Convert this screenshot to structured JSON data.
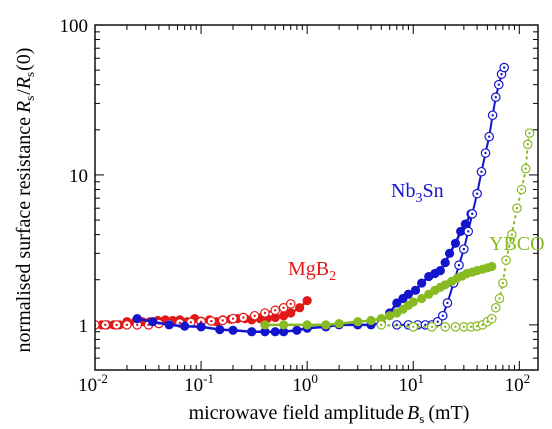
{
  "chart_data": {
    "type": "scatter",
    "title": "",
    "xlabel": "microwave field amplitude B_s (mT)",
    "ylabel": "normalised surface resistance R_s/R_s(0)",
    "x_scale": "log",
    "y_scale": "log",
    "xlim": [
      0.01,
      150
    ],
    "ylim": [
      0.5,
      100
    ],
    "grid": false,
    "x_ticks": [
      {
        "base": "10",
        "exp": "-2",
        "value": 0.01
      },
      {
        "base": "10",
        "exp": "-1",
        "value": 0.1
      },
      {
        "base": "10",
        "exp": "0",
        "value": 1
      },
      {
        "base": "10",
        "exp": "1",
        "value": 10
      },
      {
        "base": "10",
        "exp": "2",
        "value": 100
      }
    ],
    "y_ticks": [
      {
        "label": "1",
        "value": 1
      },
      {
        "label": "10",
        "value": 10
      },
      {
        "label": "100",
        "value": 100
      }
    ],
    "series": [
      {
        "name": "MgB2",
        "label_main": "MgB",
        "label_sub": "2",
        "color": "#e01818",
        "style": "filled",
        "points": [
          [
            0.01,
            1.0
          ],
          [
            0.0115,
            1.0
          ],
          [
            0.013,
            1.0
          ],
          [
            0.015,
            1.0
          ],
          [
            0.017,
            1.0
          ],
          [
            0.02,
            1.05
          ],
          [
            0.024,
            1.05
          ],
          [
            0.028,
            1.05
          ],
          [
            0.033,
            1.05
          ],
          [
            0.039,
            1.07
          ],
          [
            0.046,
            1.08
          ],
          [
            0.054,
            1.07
          ],
          [
            0.063,
            1.08
          ],
          [
            0.074,
            1.05
          ],
          [
            0.087,
            1.1
          ],
          [
            0.1,
            1.06
          ],
          [
            0.12,
            1.08
          ],
          [
            0.14,
            1.05
          ],
          [
            0.16,
            1.08
          ],
          [
            0.19,
            1.09
          ],
          [
            0.22,
            1.1
          ],
          [
            0.26,
            1.1
          ],
          [
            0.3,
            1.08
          ],
          [
            0.36,
            1.1
          ],
          [
            0.42,
            1.1
          ],
          [
            0.5,
            1.12
          ],
          [
            0.6,
            1.15
          ],
          [
            0.7,
            1.2
          ],
          [
            0.85,
            1.3
          ],
          [
            1.0,
            1.45
          ]
        ]
      },
      {
        "name": "MgB2 (open)",
        "color": "#e01818",
        "style": "open",
        "points": [
          [
            0.01,
            1.0
          ],
          [
            0.0125,
            1.0
          ],
          [
            0.016,
            1.0
          ],
          [
            0.02,
            1.0
          ],
          [
            0.025,
            1.0
          ],
          [
            0.032,
            1.0
          ],
          [
            0.04,
            1.02
          ],
          [
            0.05,
            1.02
          ],
          [
            0.063,
            1.03
          ],
          [
            0.08,
            1.04
          ],
          [
            0.1,
            1.05
          ],
          [
            0.125,
            1.06
          ],
          [
            0.16,
            1.07
          ],
          [
            0.2,
            1.1
          ],
          [
            0.25,
            1.12
          ],
          [
            0.32,
            1.15
          ],
          [
            0.4,
            1.2
          ],
          [
            0.5,
            1.25
          ],
          [
            0.6,
            1.3
          ],
          [
            0.7,
            1.38
          ]
        ]
      },
      {
        "name": "Nb3Sn",
        "label_main": "Nb",
        "label_sub": "3",
        "label_tail": "Sn",
        "color": "#1414cc",
        "style": "filled",
        "points": [
          [
            0.025,
            1.1
          ],
          [
            0.035,
            1.05
          ],
          [
            0.05,
            1.0
          ],
          [
            0.07,
            0.98
          ],
          [
            0.1,
            0.97
          ],
          [
            0.15,
            0.93
          ],
          [
            0.2,
            0.92
          ],
          [
            0.3,
            0.9
          ],
          [
            0.4,
            0.9
          ],
          [
            0.5,
            0.9
          ],
          [
            0.6,
            0.9
          ],
          [
            0.8,
            0.92
          ],
          [
            1.0,
            0.95
          ],
          [
            1.5,
            0.97
          ],
          [
            2.0,
            1.0
          ],
          [
            3.0,
            1.0
          ],
          [
            4.0,
            1.0
          ],
          [
            5.0,
            1.03
          ],
          [
            6.0,
            1.2
          ],
          [
            7.0,
            1.4
          ],
          [
            8.0,
            1.5
          ],
          [
            9.0,
            1.6
          ],
          [
            10.5,
            1.7
          ],
          [
            12.0,
            1.9
          ],
          [
            14.0,
            2.1
          ],
          [
            16.0,
            2.2
          ],
          [
            18.0,
            2.3
          ],
          [
            20.0,
            2.6
          ],
          [
            22.0,
            3.0
          ],
          [
            25.0,
            3.5
          ],
          [
            28.0,
            4.2
          ],
          [
            31.0,
            4.7
          ],
          [
            35.0,
            5.5
          ]
        ]
      },
      {
        "name": "Nb3Sn (open)",
        "color": "#1414cc",
        "style": "open",
        "points": [
          [
            7.0,
            1.0
          ],
          [
            9.0,
            1.0
          ],
          [
            11.0,
            1.0
          ],
          [
            13.0,
            1.0
          ],
          [
            15.0,
            1.0
          ],
          [
            17.0,
            1.05
          ],
          [
            19.0,
            1.15
          ],
          [
            21.0,
            1.4
          ],
          [
            24.0,
            1.9
          ],
          [
            27.0,
            2.5
          ],
          [
            30.0,
            3.2
          ],
          [
            33.0,
            4.2
          ],
          [
            36.0,
            5.5
          ],
          [
            40.0,
            7.5
          ],
          [
            44.0,
            10.5
          ],
          [
            48.0,
            14.0
          ],
          [
            52.0,
            18.0
          ],
          [
            56.0,
            25.0
          ],
          [
            60.0,
            33.0
          ],
          [
            64.0,
            40.0
          ],
          [
            68.0,
            47.0
          ],
          [
            72.0,
            52.0
          ]
        ]
      },
      {
        "name": "YBCO",
        "label_main": "YBCO",
        "color": "#88bb22",
        "style": "filled",
        "points": [
          [
            0.4,
            1.0
          ],
          [
            0.6,
            1.0
          ],
          [
            1.0,
            1.0
          ],
          [
            1.5,
            1.0
          ],
          [
            2.0,
            1.02
          ],
          [
            3.0,
            1.05
          ],
          [
            4.0,
            1.07
          ],
          [
            5.0,
            1.1
          ],
          [
            6.0,
            1.15
          ],
          [
            7.0,
            1.2
          ],
          [
            8.0,
            1.27
          ],
          [
            9.0,
            1.35
          ],
          [
            10.0,
            1.42
          ],
          [
            12.0,
            1.5
          ],
          [
            14.0,
            1.6
          ],
          [
            16.0,
            1.7
          ],
          [
            18.0,
            1.78
          ],
          [
            20.0,
            1.85
          ],
          [
            23.0,
            1.95
          ],
          [
            26.0,
            2.05
          ],
          [
            29.0,
            2.12
          ],
          [
            32.0,
            2.2
          ],
          [
            36.0,
            2.25
          ],
          [
            40.0,
            2.3
          ],
          [
            45.0,
            2.35
          ],
          [
            50.0,
            2.4
          ],
          [
            55.0,
            2.45
          ]
        ]
      },
      {
        "name": "YBCO (open)",
        "color": "#88bb22",
        "style": "open",
        "points": [
          [
            5.0,
            1.0
          ],
          [
            10.0,
            0.97
          ],
          [
            15.0,
            0.97
          ],
          [
            20.0,
            0.97
          ],
          [
            25.0,
            0.97
          ],
          [
            30.0,
            0.97
          ],
          [
            35.0,
            0.97
          ],
          [
            40.0,
            0.98
          ],
          [
            45.0,
            1.0
          ],
          [
            50.0,
            1.05
          ],
          [
            55.0,
            1.1
          ],
          [
            60.0,
            1.3
          ],
          [
            65.0,
            1.5
          ],
          [
            70.0,
            1.9
          ],
          [
            75.0,
            2.7
          ],
          [
            85.0,
            4.0
          ],
          [
            95.0,
            6.0
          ],
          [
            105.0,
            8.0
          ],
          [
            115.0,
            11.0
          ],
          [
            120.0,
            16.0
          ],
          [
            125.0,
            19.0
          ]
        ]
      }
    ]
  }
}
